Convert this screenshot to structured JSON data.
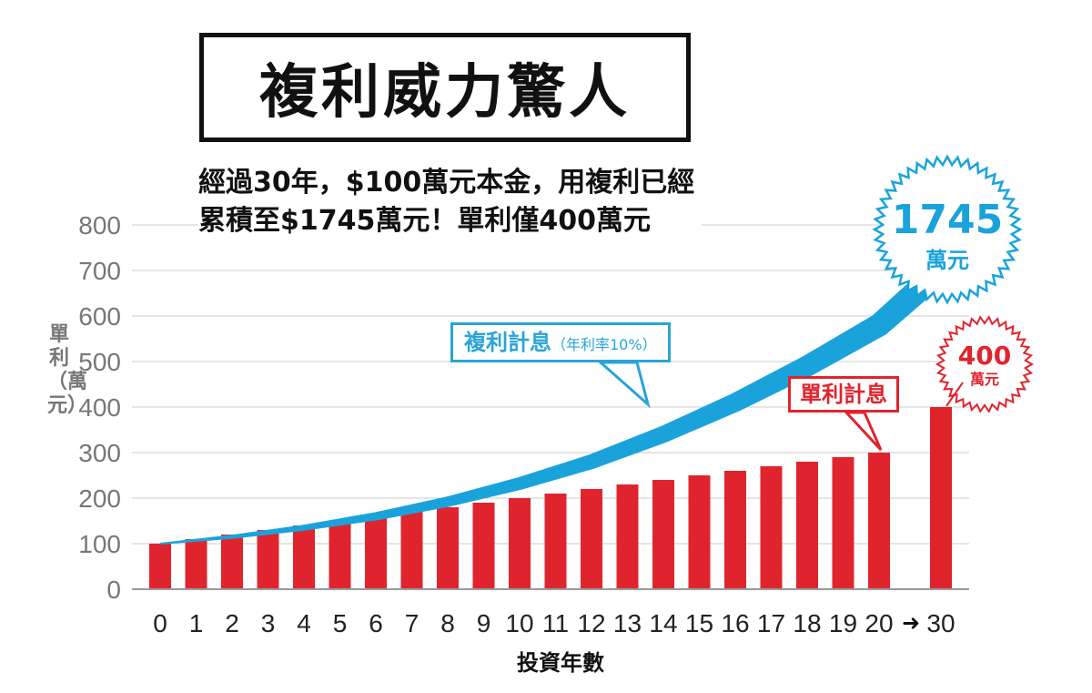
{
  "title": "複利威力驚人",
  "subtitle_lines": [
    "經過30年，$100萬元本金，用複利已經",
    "累積至$1745萬元！單利僅400萬元"
  ],
  "ylabel": "單利（萬元）",
  "xlabel": "投資年數",
  "compound_label": "複利計息",
  "compound_rate": "（年利率10%）",
  "simple_label": "單利計息",
  "compound_badge": {
    "value": "1745",
    "unit": "萬元"
  },
  "simple_badge": {
    "value": "400",
    "unit": "萬元"
  },
  "arrow_glyph": "➜",
  "colors": {
    "bar": "#e0242d",
    "arrow": "#1aa3db",
    "grid": "#cccccc",
    "axis": "#999999"
  },
  "chart_data": {
    "type": "bar",
    "categories": [
      "0",
      "1",
      "2",
      "3",
      "4",
      "5",
      "6",
      "7",
      "8",
      "9",
      "10",
      "11",
      "12",
      "13",
      "14",
      "15",
      "16",
      "17",
      "18",
      "19",
      "20",
      "30"
    ],
    "values": [
      100,
      110,
      120,
      130,
      140,
      150,
      160,
      170,
      180,
      190,
      200,
      210,
      220,
      230,
      240,
      250,
      260,
      270,
      280,
      290,
      300,
      400
    ],
    "yticks": [
      0,
      100,
      200,
      300,
      400,
      500,
      600,
      700,
      800
    ],
    "ylim": [
      0,
      800
    ],
    "grid": true,
    "compound_curve": {
      "x": [
        0,
        2,
        4,
        6,
        8,
        10,
        12,
        14,
        16,
        18,
        20,
        22
      ],
      "y": [
        100,
        115,
        135,
        160,
        192,
        232,
        280,
        340,
        410,
        490,
        580,
        720
      ]
    }
  }
}
